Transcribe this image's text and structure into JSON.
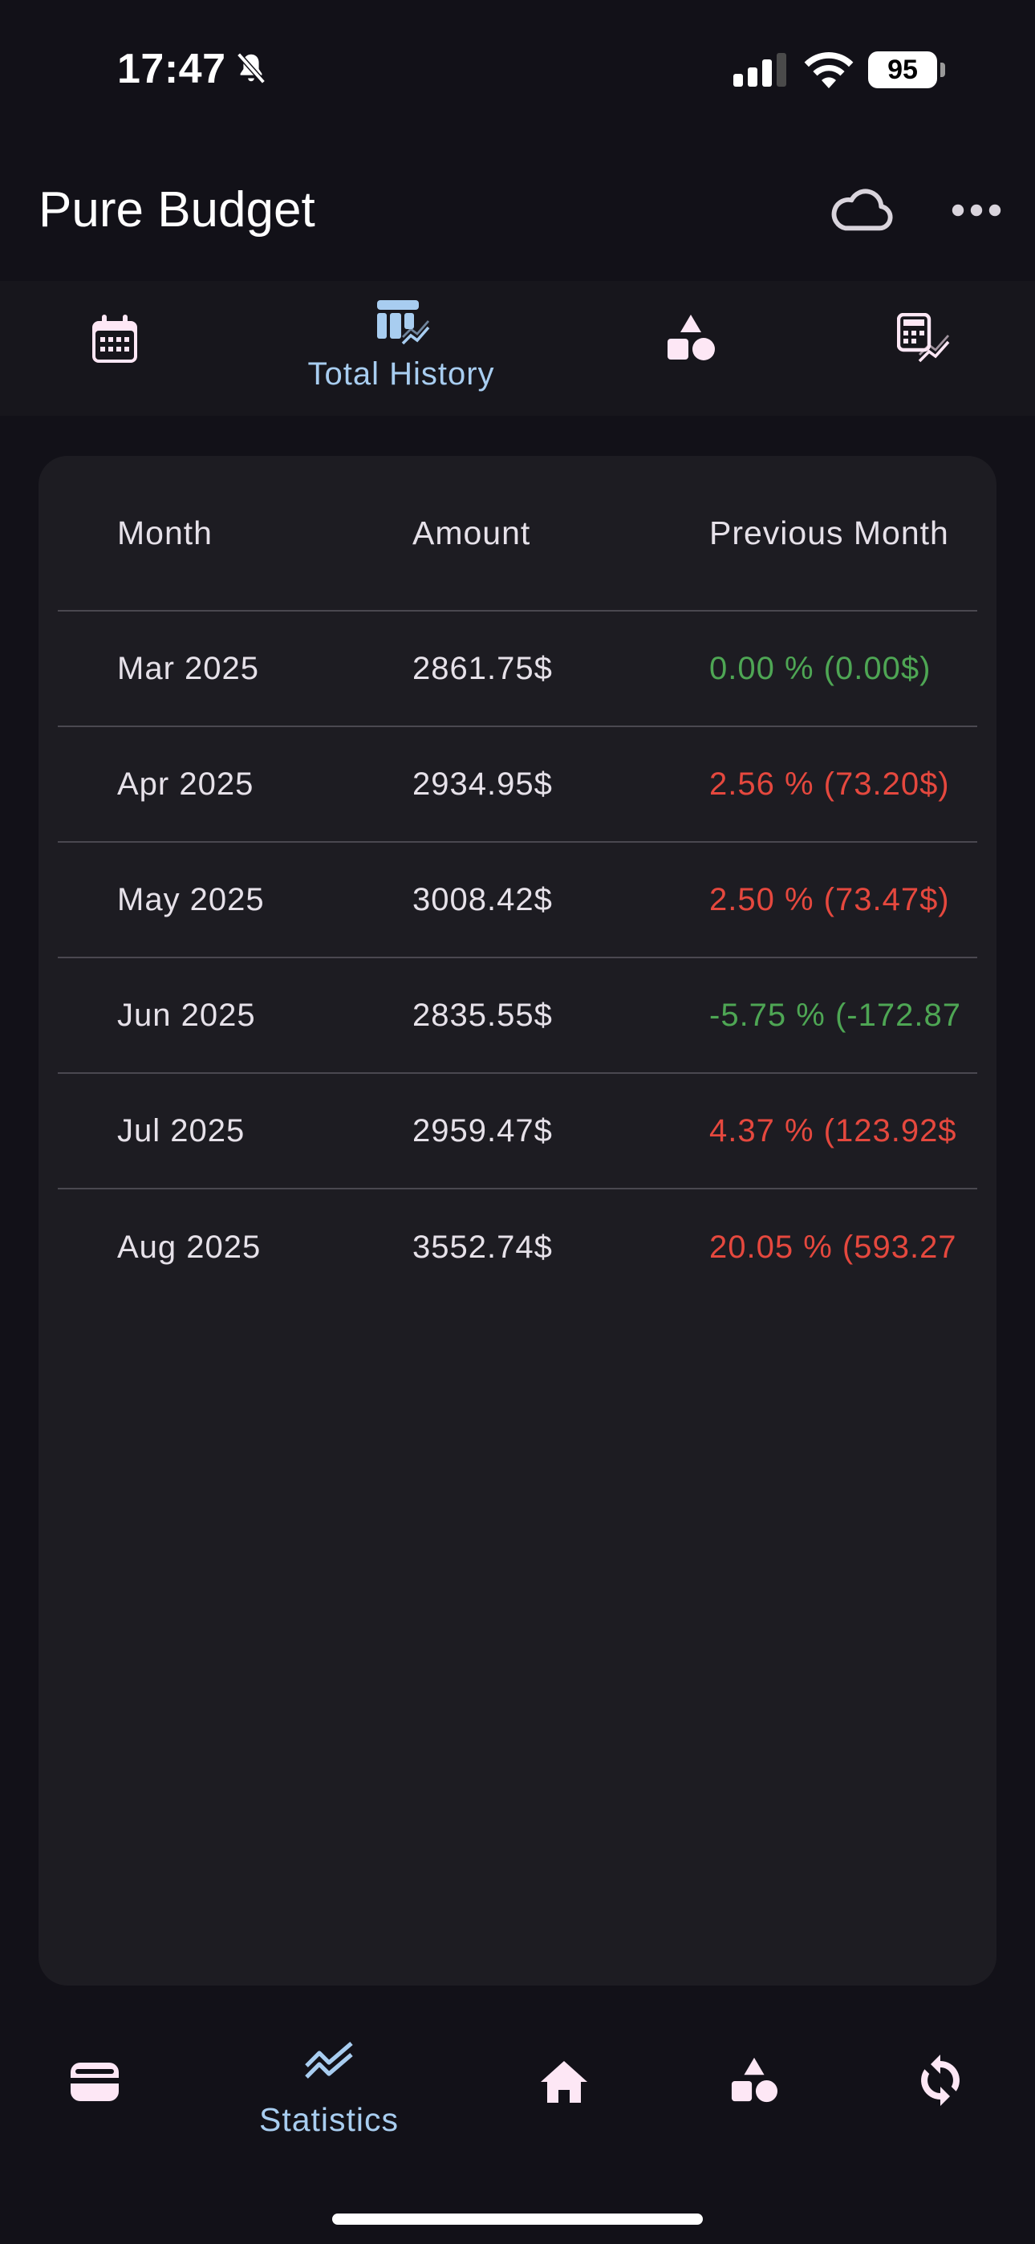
{
  "status_bar": {
    "time": "17:47",
    "battery_level": "95",
    "icons": [
      "bell-slash-icon",
      "signal-icon",
      "wifi-icon",
      "battery-icon"
    ]
  },
  "header": {
    "title": "Pure Budget",
    "icons": [
      "cloud-icon",
      "more-icon"
    ]
  },
  "tabs": [
    {
      "icon": "calendar-icon",
      "label": ""
    },
    {
      "icon": "table-chart-icon",
      "label": "Total History",
      "selected": true
    },
    {
      "icon": "categories-icon",
      "label": ""
    },
    {
      "icon": "calculator-chart-icon",
      "label": ""
    }
  ],
  "table": {
    "columns": [
      "Month",
      "Amount",
      "Previous Month"
    ],
    "rows": [
      {
        "month": "Mar 2025",
        "amount": "2861.75$",
        "change": "0.00 % (0.00$)",
        "trend": "positive"
      },
      {
        "month": "Apr 2025",
        "amount": "2934.95$",
        "change": "2.56 % (73.20$)",
        "trend": "negative"
      },
      {
        "month": "May 2025",
        "amount": "3008.42$",
        "change": "2.50 % (73.47$)",
        "trend": "negative"
      },
      {
        "month": "Jun 2025",
        "amount": "2835.55$",
        "change": "-5.75 % (-172.87",
        "trend": "positive"
      },
      {
        "month": "Jul 2025",
        "amount": "2959.47$",
        "change": "4.37 % (123.92$",
        "trend": "negative"
      },
      {
        "month": "Aug 2025",
        "amount": "3552.74$",
        "change": "20.05 % (593.27",
        "trend": "negative"
      }
    ]
  },
  "bottom_nav": [
    {
      "icon": "wallet-icon",
      "label": ""
    },
    {
      "icon": "statistics-icon",
      "label": "Statistics",
      "selected": true
    },
    {
      "icon": "home-icon",
      "label": ""
    },
    {
      "icon": "categories-icon",
      "label": ""
    },
    {
      "icon": "sync-icon",
      "label": ""
    }
  ],
  "colors": {
    "background": "#121118",
    "card": "#1d1c22",
    "accent": "#a8cdf0",
    "positive": "#4ea654",
    "negative": "#e5483e",
    "icon": "#fde7f5"
  }
}
